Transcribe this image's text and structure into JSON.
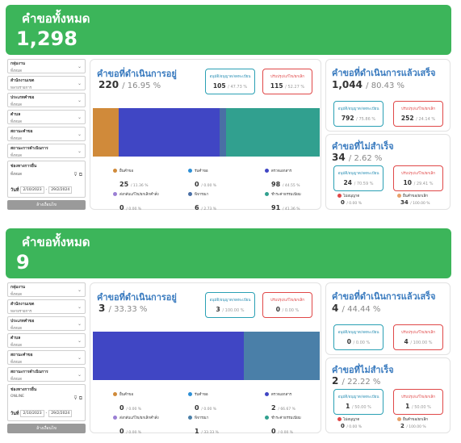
{
  "colors": {
    "header": "#3cb55a",
    "title_blue": "#3a7bbf",
    "teal": "#2aa0b4",
    "red": "#e04848"
  },
  "filter_labels": {
    "group": "กลุ่มงาน",
    "office": "สำนักงานเขต",
    "type": "ประเภทคำขอ",
    "district": "ตำบล",
    "status": "สถานะคำขอ",
    "op_status": "สถานะการดำเนินการ",
    "channel": "ช่องทางการยื่น",
    "date_label": "วันที่",
    "clear": "ล้างเงื่อนไข"
  },
  "legend_labels": {
    "received": "ยื่นคำขอ",
    "accepted": "รับคำขอ",
    "inspect": "ตรวจเอกสาร",
    "send_back": "ส่งกลับแก้ไข/ยกเลิกคำสั่ง",
    "consider": "พิจารณา",
    "pay": "ชำระค่าธรรมเนียม",
    "approve_box": "อนุมัติ/อนุญาต/จดทะเบียน",
    "reject_box": "ปรับปรุง/แก้ไข/ยกเลิก",
    "no_approve": "ไม่อนุญาต",
    "cancel": "ยื่นคำขอ/ยกเลิก"
  },
  "titles": {
    "in_progress": "คำขอที่ดำเนินการอยู่",
    "done": "คำขอที่ดำเนินการแล้วเสร็จ",
    "failed": "คำขอที่ไม่สำเร็จ"
  },
  "panels": [
    {
      "title": "คำขอทั้งหมด",
      "total": "1,298",
      "filters": {
        "group": "ทั้งหมด",
        "office": "หลายรายการ",
        "type": "ทั้งหมด",
        "district": "ทั้งหมด",
        "status": "ทั้งหมด",
        "op_status": "ทั้งหมด",
        "channel": "ทั้งหมด",
        "date_from": "2/10/2023",
        "date_to": "29/2/2024"
      },
      "in_progress": {
        "value": "220",
        "pct": "/ 16.95 %",
        "approve": {
          "value": "105",
          "pct": "/ 47.73 %"
        },
        "reject": {
          "value": "115",
          "pct": "/ 52.27 %"
        },
        "stages": [
          {
            "key": "received",
            "value": "25",
            "pct": "/ 11.36 %",
            "color": "#d08a3a",
            "share": 0.1136
          },
          {
            "key": "accepted",
            "value": "0",
            "pct": "/ 0.00 %",
            "color": "#2d8fd6",
            "share": 0
          },
          {
            "key": "inspect",
            "value": "98",
            "pct": "/ 44.55 %",
            "color": "#4046c4",
            "share": 0.4455
          },
          {
            "key": "send_back",
            "value": "0",
            "pct": "/ 0.00 %",
            "color": "#9b7fd4",
            "share": 0
          },
          {
            "key": "consider",
            "value": "6",
            "pct": "/ 2.73 %",
            "color": "#4a6fa5",
            "share": 0.0273
          },
          {
            "key": "pay",
            "value": "91",
            "pct": "/ 41.36 %",
            "color": "#31a08f",
            "share": 0.4136
          }
        ]
      },
      "done": {
        "value": "1,044",
        "pct": "/ 80.43 %",
        "approve": {
          "value": "792",
          "pct": "/ 75.86 %"
        },
        "reject": {
          "value": "252",
          "pct": "/ 24.14 %"
        }
      },
      "failed": {
        "value": "34",
        "pct": "/ 2.62 %",
        "approve": {
          "value": "24",
          "pct": "/ 70.59 %"
        },
        "reject": {
          "value": "10",
          "pct": "/ 29.41 %"
        },
        "no_approve": {
          "value": "0",
          "pct": "/ 0.00 %"
        },
        "cancel": {
          "value": "34",
          "pct": "/ 100.00 %"
        }
      }
    },
    {
      "title": "คำขอทั้งหมด",
      "total": "9",
      "filters": {
        "group": "ทั้งหมด",
        "office": "หลายรายการ",
        "type": "ทั้งหมด",
        "district": "ทั้งหมด",
        "status": "ทั้งหมด",
        "op_status": "ทั้งหมด",
        "channel": "ONLINE",
        "date_from": "2/10/2023",
        "date_to": "29/2/2024"
      },
      "in_progress": {
        "value": "3",
        "pct": "/ 33.33 %",
        "approve": {
          "value": "3",
          "pct": "/ 100.00 %"
        },
        "reject": {
          "value": "0",
          "pct": "/ 0.00 %"
        },
        "stages": [
          {
            "key": "received",
            "value": "0",
            "pct": "/ 0.00 %",
            "color": "#d08a3a",
            "share": 0
          },
          {
            "key": "accepted",
            "value": "0",
            "pct": "/ 0.00 %",
            "color": "#2d8fd6",
            "share": 0
          },
          {
            "key": "inspect",
            "value": "2",
            "pct": "/ 66.67 %",
            "color": "#4046c4",
            "share": 0.6667
          },
          {
            "key": "send_back",
            "value": "0",
            "pct": "/ 0.00 %",
            "color": "#9b7fd4",
            "share": 0
          },
          {
            "key": "consider",
            "value": "1",
            "pct": "/ 33.33 %",
            "color": "#4a7fa8",
            "share": 0.3333
          },
          {
            "key": "pay",
            "value": "0",
            "pct": "/ 0.00 %",
            "color": "#31a08f",
            "share": 0
          }
        ]
      },
      "done": {
        "value": "4",
        "pct": "/ 44.44 %",
        "approve": {
          "value": "0",
          "pct": "/ 0.00 %"
        },
        "reject": {
          "value": "4",
          "pct": "/ 100.00 %"
        }
      },
      "failed": {
        "value": "2",
        "pct": "/ 22.22 %",
        "approve": {
          "value": "1",
          "pct": "/ 50.00 %"
        },
        "reject": {
          "value": "1",
          "pct": "/ 50.00 %"
        },
        "no_approve": {
          "value": "0",
          "pct": "/ 0.00 %"
        },
        "cancel": {
          "value": "2",
          "pct": "/ 100.00 %"
        }
      }
    }
  ]
}
